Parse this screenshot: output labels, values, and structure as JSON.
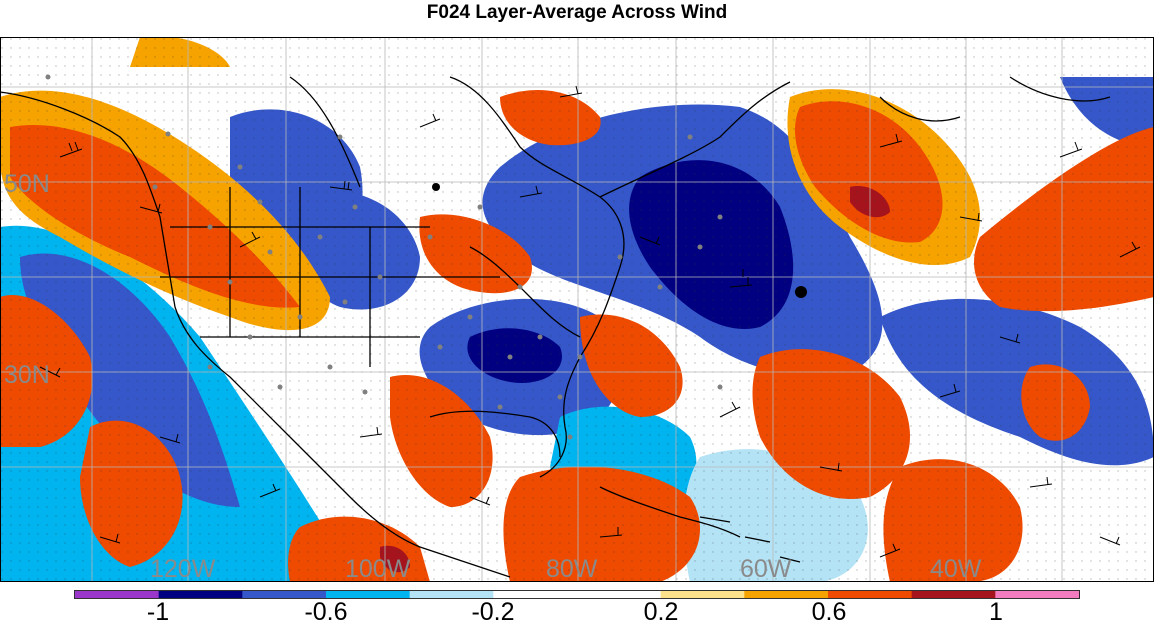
{
  "title": "F024 Layer-Average Across Wind",
  "latitude_labels": [
    "50N",
    "30N"
  ],
  "longitude_labels": [
    "120W",
    "100W",
    "80W",
    "60W",
    "40W"
  ],
  "colorbar": {
    "colors": [
      "#9a36c9",
      "#000080",
      "#3557c9",
      "#00b4ef",
      "#b4e3f6",
      "#ffffff",
      "#ffffff",
      "#fde28c",
      "#f6a300",
      "#ee4a00",
      "#a5141d",
      "#f37cc0"
    ],
    "tick_labels": [
      "-1",
      "-0.6",
      "-0.2",
      "0.2",
      "0.6",
      "1"
    ],
    "tick_values": [
      -1,
      -0.6,
      -0.2,
      0.2,
      0.6,
      1
    ],
    "min": -1.2,
    "max": 1.2
  }
}
